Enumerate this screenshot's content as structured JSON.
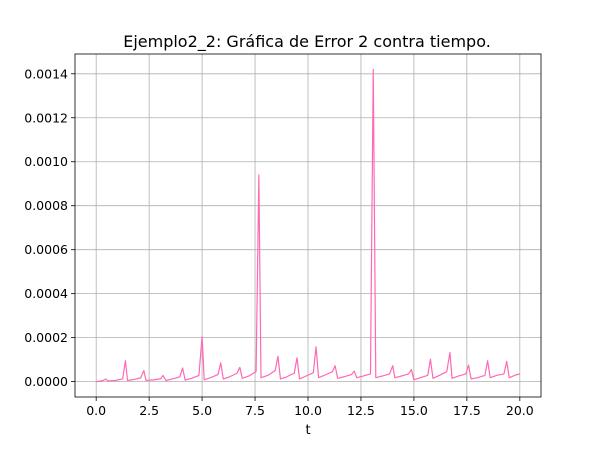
{
  "chart_data": {
    "type": "line",
    "title": "Ejemplo2_2: Gráfica de Error 2 contra tiempo.",
    "xlabel": "t",
    "ylabel": "",
    "xlim": [
      -1.0,
      21.0
    ],
    "ylim": [
      -7e-05,
      0.00149
    ],
    "x_ticks": [
      0.0,
      2.5,
      5.0,
      7.5,
      10.0,
      12.5,
      15.0,
      17.5,
      20.0
    ],
    "x_tick_labels": [
      "0.0",
      "2.5",
      "5.0",
      "7.5",
      "10.0",
      "12.5",
      "15.0",
      "17.5",
      "20.0"
    ],
    "y_ticks": [
      0.0,
      0.0002,
      0.0004,
      0.0006,
      0.0008,
      0.001,
      0.0012,
      0.0014
    ],
    "y_tick_labels": [
      "0.0000",
      "0.0002",
      "0.0004",
      "0.0006",
      "0.0008",
      "0.0010",
      "0.0012",
      "0.0014"
    ],
    "grid": true,
    "series": [
      {
        "color": "#ff69b4",
        "x": [
          0.0,
          0.3,
          0.45,
          0.55,
          0.9,
          1.25,
          1.38,
          1.48,
          1.8,
          2.1,
          2.25,
          2.35,
          2.7,
          3.05,
          3.15,
          3.3,
          3.6,
          3.95,
          4.08,
          4.2,
          4.5,
          4.85,
          5.0,
          5.1,
          5.4,
          5.75,
          5.88,
          6.0,
          6.3,
          6.65,
          6.78,
          6.9,
          7.2,
          7.55,
          7.68,
          7.78,
          8.1,
          8.45,
          8.58,
          8.7,
          9.0,
          9.35,
          9.48,
          9.6,
          9.9,
          10.25,
          10.38,
          10.5,
          10.8,
          11.15,
          11.28,
          11.4,
          11.7,
          12.05,
          12.18,
          12.3,
          12.6,
          12.95,
          13.08,
          13.2,
          13.5,
          13.85,
          14.0,
          14.1,
          14.4,
          14.75,
          14.88,
          15.0,
          15.3,
          15.65,
          15.78,
          15.9,
          16.2,
          16.55,
          16.7,
          16.8,
          17.1,
          17.45,
          17.58,
          17.7,
          18.0,
          18.35,
          18.48,
          18.6,
          18.9,
          19.25,
          19.38,
          19.5,
          19.8,
          20.0
        ],
        "y": [
          0.0,
          4e-06,
          1.2e-05,
          3e-06,
          5e-06,
          1.2e-05,
          9.5e-05,
          5e-06,
          1e-05,
          1.7e-05,
          5e-05,
          6e-06,
          8e-06,
          1.3e-05,
          2.8e-05,
          5e-06,
          1.2e-05,
          2.2e-05,
          6.2e-05,
          7e-06,
          1.5e-05,
          2.8e-05,
          0.000205,
          8e-06,
          1.8e-05,
          3.2e-05,
          8.5e-05,
          1.2e-05,
          2.2e-05,
          3.8e-05,
          6.5e-05,
          1.5e-05,
          2.5e-05,
          4.5e-05,
          0.00094,
          1.8e-05,
          2.8e-05,
          5e-05,
          0.000115,
          1.2e-05,
          2.2e-05,
          3.8e-05,
          0.000108,
          1.2e-05,
          2.5e-05,
          4e-05,
          0.000158,
          1.8e-05,
          3e-05,
          4.5e-05,
          7.2e-05,
          1.5e-05,
          2.2e-05,
          3.2e-05,
          4.8e-05,
          1.8e-05,
          2.5e-05,
          3.5e-05,
          0.00142,
          1.8e-05,
          2.5e-05,
          3.5e-05,
          7.2e-05,
          1.8e-05,
          2.5e-05,
          3.5e-05,
          5.5e-05,
          8e-06,
          1.8e-05,
          2.8e-05,
          0.000102,
          1.5e-05,
          2.8e-05,
          4.5e-05,
          0.000132,
          1.5e-05,
          2.5e-05,
          3.5e-05,
          7.5e-05,
          1.2e-05,
          1.8e-05,
          2.8e-05,
          9.5e-05,
          1.8e-05,
          2.8e-05,
          3.5e-05,
          9.2e-05,
          1.8e-05,
          3e-05,
          3.5e-05
        ]
      }
    ]
  }
}
